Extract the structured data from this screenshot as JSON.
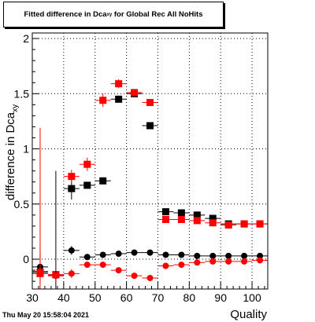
{
  "chart_data": {
    "type": "scatter",
    "title": "Fitted difference in Dca",
    "title_subscript": "xy",
    "title_suffix": " for Global Rec All NoHits",
    "xlabel": "Quality",
    "ylabel": "difference in Dca",
    "ylabel_subscript": "xy",
    "xlim": [
      30,
      105
    ],
    "ylim": [
      -0.27,
      2.05
    ],
    "x_ticks": [
      30,
      40,
      50,
      60,
      70,
      80,
      90,
      100
    ],
    "y_ticks": [
      0,
      0.5,
      1,
      1.5,
      2
    ],
    "y_tick_labels": [
      "0",
      "0.5",
      "1",
      "1.5",
      "2"
    ],
    "grid": true,
    "legend": "none",
    "series": [
      {
        "marker": "square",
        "color": "#000000",
        "x": [
          32.5,
          37.5,
          42.5,
          47.5,
          52.5,
          57.5,
          62.5,
          67.5,
          72.5,
          77.5,
          82.5,
          87.5,
          92.5,
          97.5,
          102.5
        ],
        "y": [
          -0.12,
          -0.14,
          0.64,
          0.67,
          0.71,
          1.45,
          1.5,
          1.21,
          0.43,
          0.42,
          0.4,
          0.37,
          0.32,
          0.32,
          0.32
        ],
        "err": [
          0.03,
          0.02,
          0.1,
          0.03,
          0.03,
          0.03,
          0.03,
          0.03,
          0.01,
          0.01,
          0.01,
          0.01,
          0.01,
          0.01,
          0.01
        ]
      },
      {
        "marker": "square",
        "color": "#ff0000",
        "x": [
          32.5,
          37.5,
          42.5,
          47.5,
          52.5,
          57.5,
          62.5,
          67.5,
          72.5,
          77.5,
          82.5,
          87.5,
          92.5,
          97.5,
          102.5
        ],
        "y": [
          -0.13,
          -0.14,
          0.75,
          0.86,
          1.44,
          1.59,
          1.51,
          1.42,
          0.36,
          0.36,
          0.35,
          0.33,
          0.31,
          0.32,
          0.32
        ],
        "err": [
          0.02,
          0.02,
          0.06,
          0.06,
          0.06,
          0.04,
          0.03,
          0.03,
          0.01,
          0.01,
          0.01,
          0.01,
          0.01,
          0.01,
          0.01
        ]
      },
      {
        "marker": "circle",
        "color": "#000000",
        "x": [
          32.5,
          37.5,
          42.5,
          47.5,
          52.5,
          57.5,
          62.5,
          67.5,
          72.5,
          77.5,
          82.5,
          87.5,
          92.5,
          97.5,
          102.5
        ],
        "y": [
          -0.07,
          -0.15,
          0.08,
          0.02,
          0.04,
          0.05,
          0.06,
          0.06,
          0.04,
          0.04,
          0.03,
          0.03,
          0.03,
          0.03,
          0.03
        ],
        "err": [
          0.15,
          0.95,
          0.04,
          0.02,
          0.01,
          0.01,
          0.01,
          0.01,
          0.01,
          0.01,
          0.01,
          0.01,
          0.01,
          0.01,
          0.01
        ]
      },
      {
        "marker": "circle",
        "color": "#ff0000",
        "x": [
          32.5,
          37.5,
          42.5,
          47.5,
          52.5,
          57.5,
          62.5,
          67.5,
          72.5,
          77.5,
          82.5,
          87.5,
          92.5,
          97.5,
          102.5
        ],
        "y": [
          -0.11,
          -0.15,
          -0.13,
          -0.05,
          -0.05,
          -0.1,
          -0.15,
          -0.17,
          -0.06,
          -0.05,
          -0.03,
          -0.02,
          -0.02,
          -0.02,
          -0.01
        ],
        "err": [
          1.3,
          0.02,
          0.04,
          0.02,
          0.02,
          0.02,
          0.02,
          0.02,
          0.01,
          0.01,
          0.01,
          0.01,
          0.01,
          0.01,
          0.01
        ]
      }
    ]
  },
  "footer": {
    "timestamp": "Thu May 20 15:58:04 2021"
  }
}
